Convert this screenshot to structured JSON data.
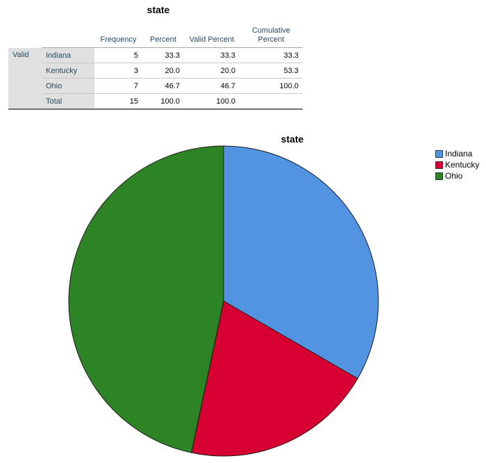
{
  "table": {
    "title": "state",
    "headers": {
      "frequency": "Frequency",
      "percent": "Percent",
      "valid_percent": "Valid Percent",
      "cumulative_line1": "Cumulative",
      "cumulative_line2": "Percent"
    },
    "group_label": "Valid",
    "rows": [
      {
        "label": "Indiana",
        "frequency": "5",
        "percent": "33.3",
        "valid_percent": "33.3",
        "cumulative": "33.3"
      },
      {
        "label": "Kentucky",
        "frequency": "3",
        "percent": "20.0",
        "valid_percent": "20.0",
        "cumulative": "53.3"
      },
      {
        "label": "Ohio",
        "frequency": "7",
        "percent": "46.7",
        "valid_percent": "46.7",
        "cumulative": "100.0"
      },
      {
        "label": "Total",
        "frequency": "15",
        "percent": "100.0",
        "valid_percent": "100.0",
        "cumulative": ""
      }
    ]
  },
  "chart_data": {
    "type": "pie",
    "title": "state",
    "categories": [
      "Indiana",
      "Kentucky",
      "Ohio"
    ],
    "values": [
      5,
      3,
      7
    ],
    "colors": [
      "#5294e2",
      "#d60032",
      "#2d8424"
    ],
    "legend_position": "top-right"
  }
}
